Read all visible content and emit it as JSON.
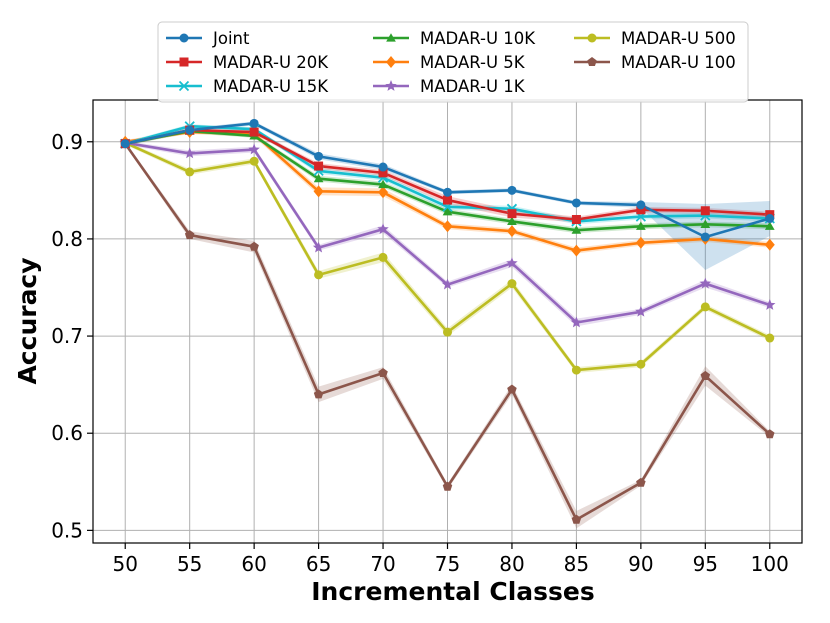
{
  "chart_data": {
    "type": "line",
    "title": "",
    "xlabel": "Incremental Classes",
    "ylabel": "Accuracy",
    "x": [
      50,
      55,
      60,
      65,
      70,
      75,
      80,
      85,
      90,
      95,
      100
    ],
    "x_tick_labels": [
      "50",
      "55",
      "60",
      "65",
      "70",
      "75",
      "80",
      "85",
      "90",
      "95",
      "100"
    ],
    "y_ticks": [
      0.5,
      0.6,
      0.7,
      0.8,
      0.9
    ],
    "y_tick_labels": [
      "0.5",
      "0.6",
      "0.7",
      "0.8",
      "0.9"
    ],
    "xlim": [
      47.5,
      102.5
    ],
    "ylim": [
      0.487,
      0.943
    ],
    "grid": true,
    "legend": {
      "placement": "top",
      "columns": 3
    },
    "series": [
      {
        "name": "Joint",
        "color": "#1f77b4",
        "marker": "circle",
        "values": [
          0.898,
          0.912,
          0.919,
          0.885,
          0.874,
          0.848,
          0.85,
          0.837,
          0.835,
          0.802,
          0.821
        ],
        "band": [
          0.002,
          0.002,
          0.002,
          0.003,
          0.003,
          0.002,
          0.002,
          0.002,
          0.003,
          0.034,
          0.018
        ]
      },
      {
        "name": "MADAR-U 20K",
        "color": "#d62728",
        "marker": "square",
        "values": [
          0.898,
          0.912,
          0.91,
          0.875,
          0.868,
          0.84,
          0.826,
          0.82,
          0.83,
          0.829,
          0.825
        ],
        "band": [
          0.002,
          0.002,
          0.002,
          0.003,
          0.003,
          0.004,
          0.004,
          0.003,
          0.003,
          0.003,
          0.003
        ]
      },
      {
        "name": "MADAR-U 15K",
        "color": "#17becf",
        "marker": "x",
        "values": [
          0.898,
          0.916,
          0.913,
          0.87,
          0.863,
          0.833,
          0.831,
          0.818,
          0.823,
          0.824,
          0.821
        ],
        "band": [
          0.002,
          0.002,
          0.002,
          0.003,
          0.003,
          0.003,
          0.003,
          0.003,
          0.003,
          0.003,
          0.003
        ]
      },
      {
        "name": "MADAR-U 10K",
        "color": "#2ca02c",
        "marker": "triangle",
        "values": [
          0.898,
          0.911,
          0.906,
          0.862,
          0.856,
          0.828,
          0.818,
          0.809,
          0.813,
          0.815,
          0.813
        ],
        "band": [
          0.002,
          0.002,
          0.002,
          0.003,
          0.003,
          0.003,
          0.003,
          0.003,
          0.003,
          0.003,
          0.003
        ]
      },
      {
        "name": "MADAR-U 5K",
        "color": "#ff7f0e",
        "marker": "diamond",
        "values": [
          0.9,
          0.91,
          0.908,
          0.849,
          0.848,
          0.813,
          0.808,
          0.788,
          0.796,
          0.8,
          0.794
        ],
        "band": [
          0.002,
          0.002,
          0.003,
          0.004,
          0.004,
          0.003,
          0.003,
          0.003,
          0.003,
          0.003,
          0.003
        ]
      },
      {
        "name": "MADAR-U 1K",
        "color": "#9467bd",
        "marker": "star",
        "values": [
          0.899,
          0.888,
          0.892,
          0.791,
          0.81,
          0.753,
          0.775,
          0.714,
          0.725,
          0.754,
          0.732
        ],
        "band": [
          0.002,
          0.003,
          0.003,
          0.003,
          0.004,
          0.003,
          0.004,
          0.004,
          0.003,
          0.004,
          0.003
        ]
      },
      {
        "name": "MADAR-U 500",
        "color": "#bcbd22",
        "marker": "circle",
        "values": [
          0.899,
          0.869,
          0.88,
          0.763,
          0.781,
          0.704,
          0.754,
          0.665,
          0.671,
          0.73,
          0.698
        ],
        "band": [
          0.002,
          0.003,
          0.003,
          0.004,
          0.005,
          0.004,
          0.004,
          0.003,
          0.003,
          0.003,
          0.003
        ]
      },
      {
        "name": "MADAR-U 100",
        "color": "#8c564b",
        "marker": "pentagon",
        "values": [
          0.898,
          0.804,
          0.792,
          0.64,
          0.662,
          0.545,
          0.645,
          0.511,
          0.549,
          0.659,
          0.599
        ],
        "band": [
          0.002,
          0.004,
          0.006,
          0.008,
          0.006,
          0.003,
          0.005,
          0.009,
          0.003,
          0.01,
          0.003
        ]
      }
    ]
  }
}
